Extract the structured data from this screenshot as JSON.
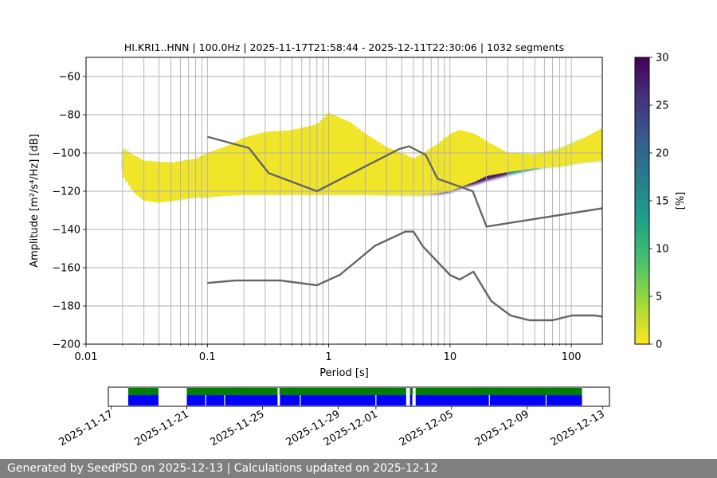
{
  "chart_data": [
    {
      "type": "heatmap",
      "title": "HI.KRI1..HNN | 100.0Hz | 2025-11-17T21:58:44 - 2025-12-11T22:30:06 | 1032 segments",
      "xlabel": "Period [s]",
      "ylabel": "Amplitude [m²/s⁴/Hz] [dB]",
      "xscale": "log",
      "xlim": [
        0.01,
        180
      ],
      "ylim": [
        -200,
        -50
      ],
      "xticks": [
        0.01,
        0.1,
        1,
        10,
        100
      ],
      "xtick_labels": [
        "0.01",
        "0.1",
        "1",
        "10",
        "100"
      ],
      "yticks": [
        -200,
        -180,
        -160,
        -140,
        -120,
        -100,
        -80,
        -60
      ],
      "ytick_labels": [
        "−200",
        "−180",
        "−160",
        "−140",
        "−120",
        "−100",
        "−80",
        "−60"
      ],
      "grid_periods": [
        0.02,
        0.03,
        0.04,
        0.05,
        0.06,
        0.07,
        0.08,
        0.09,
        0.1,
        0.2,
        0.3,
        0.4,
        0.5,
        0.6,
        0.7,
        0.8,
        0.9,
        1,
        2,
        3,
        4,
        5,
        6,
        7,
        8,
        9,
        10,
        20,
        30,
        40,
        50,
        60,
        70,
        80,
        90,
        100
      ],
      "grid_y": true,
      "psd_mode": {
        "period": [
          0.02,
          0.025,
          0.03,
          0.04,
          0.06,
          0.1,
          0.15,
          0.2,
          0.3,
          0.5,
          0.8,
          1.2,
          2,
          3,
          4,
          5,
          6,
          8,
          10,
          12,
          16,
          20,
          30,
          50,
          80,
          120,
          180
        ],
        "db": [
          -105,
          -114,
          -118,
          -121,
          -121,
          -119,
          -117,
          -116,
          -115,
          -115,
          -116,
          -116,
          -117,
          -118,
          -119,
          -120,
          -120,
          -120,
          -119,
          -117,
          -115,
          -113,
          -110,
          -107,
          -104,
          -102,
          -101
        ]
      },
      "psd_upper": {
        "period": [
          0.02,
          0.03,
          0.05,
          0.08,
          0.1,
          0.15,
          0.2,
          0.3,
          0.5,
          0.8,
          1,
          1.5,
          2,
          3,
          4,
          5,
          6,
          8,
          10,
          12,
          16,
          20,
          30,
          50,
          80,
          120,
          180
        ],
        "db": [
          -98,
          -104,
          -105,
          -103,
          -100,
          -96,
          -92,
          -89,
          -88,
          -85,
          -79,
          -84,
          -90,
          -97,
          -100,
          -103,
          -100,
          -95,
          -90,
          -88,
          -90,
          -94,
          -100,
          -101,
          -98,
          -93,
          -87
        ]
      },
      "psd_lower": {
        "period": [
          0.02,
          0.025,
          0.03,
          0.04,
          0.05,
          0.08,
          0.1,
          0.2,
          0.5,
          1,
          2,
          4,
          6,
          8,
          10,
          12,
          16,
          20,
          30,
          50,
          80,
          120,
          180
        ],
        "db": [
          -112,
          -121,
          -125,
          -126,
          -125,
          -123,
          -123,
          -122,
          -122,
          -122,
          -122,
          -122,
          -122,
          -121,
          -120,
          -118,
          -115,
          -112,
          -110,
          -108,
          -107,
          -105,
          -104
        ]
      },
      "high_noise_model": {
        "period": [
          0.1,
          0.22,
          0.32,
          0.8,
          3.8,
          4.6,
          6.3,
          7.9,
          15.4,
          20,
          354.8
        ],
        "db": [
          -91.5,
          -97.4,
          -110.5,
          -120,
          -98,
          -96.5,
          -101,
          -113.5,
          -120,
          -138.5,
          -126
        ]
      },
      "low_noise_model": {
        "period": [
          0.1,
          0.17,
          0.4,
          0.8,
          1.24,
          2.4,
          4.3,
          5,
          6,
          10,
          12,
          15.6,
          21.9,
          31.6,
          45,
          70,
          101,
          154,
          328
        ],
        "db": [
          -168,
          -166.7,
          -166.7,
          -169.2,
          -163.7,
          -148.6,
          -141.1,
          -141.1,
          -149,
          -163.8,
          -166.2,
          -162.1,
          -177.5,
          -185,
          -187.5,
          -187.5,
          -185,
          -185,
          -187.5
        ]
      },
      "colorbar": {
        "label": "[%]",
        "range": [
          0,
          30
        ],
        "ticks": [
          "0",
          "5",
          "10",
          "15",
          "20",
          "25",
          "30"
        ],
        "tick_values": [
          0,
          5,
          10,
          15,
          20,
          25,
          30
        ],
        "stops": [
          "#fde725",
          "#a0da39",
          "#4ac16d",
          "#1fa187",
          "#277f8e",
          "#365c8d",
          "#46327e",
          "#440154"
        ]
      },
      "colors": {
        "noise_model": "#666666",
        "grid": "#b0b0b0"
      }
    },
    {
      "type": "timeline",
      "x_tick_labels": [
        "2025-11-17",
        "2025-11-21",
        "2025-11-25",
        "2025-11-29",
        "2025-12-01",
        "2025-12-05",
        "2025-12-09",
        "2025-12-13"
      ],
      "x_tick_days": [
        0,
        4,
        8,
        12,
        14,
        18,
        22,
        26
      ],
      "axis_start_day": -0.15,
      "axis_end_day": 26.35,
      "data_available_days": [
        [
          0.9,
          2.5
        ],
        [
          4.0,
          8.8
        ],
        [
          8.9,
          15.6
        ],
        [
          15.8,
          15.95
        ],
        [
          16.1,
          24.9
        ]
      ],
      "segment_gap_days": [
        5.0,
        6.0,
        8.9,
        10.0,
        14.0,
        15.7,
        15.95,
        20.0,
        23.0
      ],
      "colors": {
        "available": "#007f00",
        "segments": "#0000ff"
      }
    }
  ],
  "footer": {
    "text": "Generated by SeedPSD on 2025-12-13 | Calculations updated on 2025-12-12"
  }
}
